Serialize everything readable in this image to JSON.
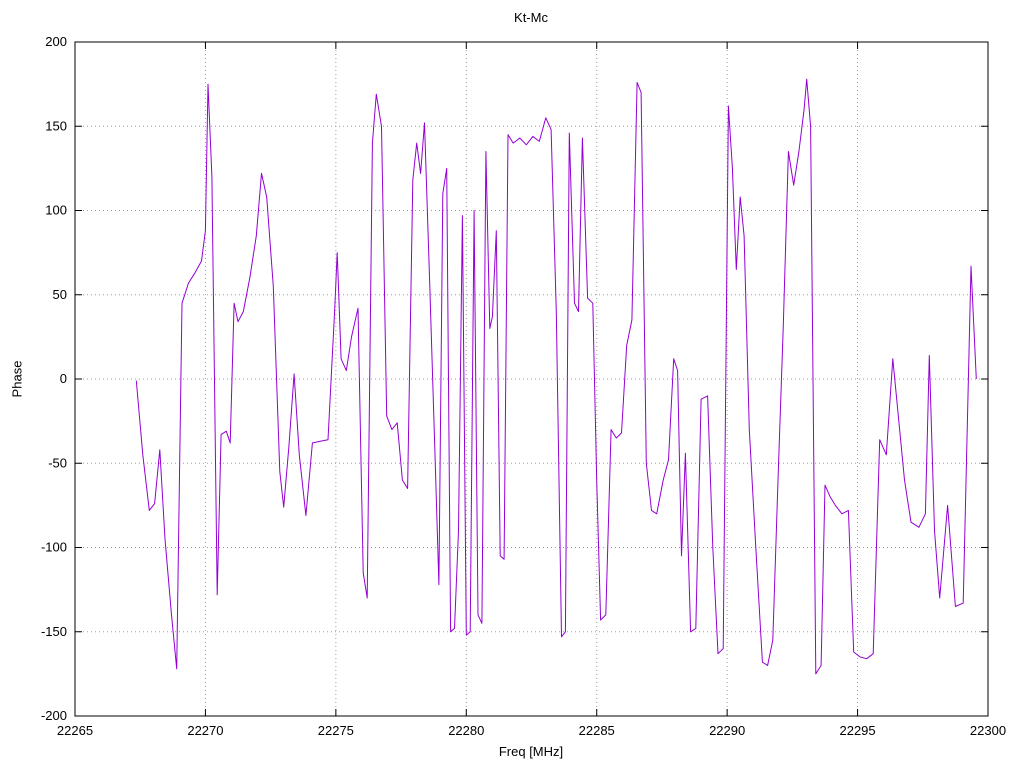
{
  "chart_data": {
    "type": "line",
    "title": "Kt-Mc",
    "xlabel": "Freq [MHz]",
    "ylabel": "Phase",
    "xlim": [
      22265,
      22300
    ],
    "ylim": [
      -200,
      200
    ],
    "xticks": [
      22265,
      22270,
      22275,
      22280,
      22285,
      22290,
      22295,
      22300
    ],
    "yticks": [
      -200,
      -150,
      -100,
      -50,
      0,
      50,
      100,
      150,
      200
    ],
    "grid": true,
    "legend": "none",
    "line_color": "#9400d3",
    "grid_color": "#9e9e9e",
    "points": [
      [
        22267.35,
        -1
      ],
      [
        22267.6,
        -45
      ],
      [
        22267.85,
        -78
      ],
      [
        22268.05,
        -74
      ],
      [
        22268.25,
        -42
      ],
      [
        22268.45,
        -95
      ],
      [
        22268.7,
        -140
      ],
      [
        22268.9,
        -172
      ],
      [
        22269.1,
        45
      ],
      [
        22269.35,
        57
      ],
      [
        22269.6,
        63
      ],
      [
        22269.85,
        70
      ],
      [
        22270.0,
        88
      ],
      [
        22270.1,
        175
      ],
      [
        22270.25,
        120
      ],
      [
        22270.45,
        -128
      ],
      [
        22270.6,
        -33
      ],
      [
        22270.8,
        -31
      ],
      [
        22270.95,
        -38
      ],
      [
        22271.1,
        45
      ],
      [
        22271.25,
        34
      ],
      [
        22271.45,
        40
      ],
      [
        22271.7,
        60
      ],
      [
        22271.95,
        85
      ],
      [
        22272.15,
        122
      ],
      [
        22272.35,
        108
      ],
      [
        22272.6,
        55
      ],
      [
        22272.85,
        -55
      ],
      [
        22273.0,
        -76
      ],
      [
        22273.2,
        -40
      ],
      [
        22273.4,
        3
      ],
      [
        22273.6,
        -45
      ],
      [
        22273.85,
        -81
      ],
      [
        22274.1,
        -38
      ],
      [
        22274.4,
        -37
      ],
      [
        22274.7,
        -36
      ],
      [
        22274.95,
        40
      ],
      [
        22275.05,
        75
      ],
      [
        22275.2,
        12
      ],
      [
        22275.4,
        5
      ],
      [
        22275.6,
        25
      ],
      [
        22275.85,
        42
      ],
      [
        22276.05,
        -115
      ],
      [
        22276.2,
        -130
      ],
      [
        22276.4,
        140
      ],
      [
        22276.55,
        169
      ],
      [
        22276.75,
        150
      ],
      [
        22276.95,
        -22
      ],
      [
        22277.15,
        -30
      ],
      [
        22277.35,
        -26
      ],
      [
        22277.55,
        -60
      ],
      [
        22277.75,
        -65
      ],
      [
        22277.95,
        118
      ],
      [
        22278.1,
        140
      ],
      [
        22278.25,
        122
      ],
      [
        22278.4,
        152
      ],
      [
        22278.6,
        55
      ],
      [
        22278.8,
        -45
      ],
      [
        22278.95,
        -122
      ],
      [
        22279.1,
        110
      ],
      [
        22279.25,
        125
      ],
      [
        22279.4,
        -150
      ],
      [
        22279.55,
        -148
      ],
      [
        22279.7,
        -90
      ],
      [
        22279.85,
        97
      ],
      [
        22280.0,
        -152
      ],
      [
        22280.15,
        -150
      ],
      [
        22280.3,
        100
      ],
      [
        22280.45,
        -140
      ],
      [
        22280.6,
        -145
      ],
      [
        22280.75,
        135
      ],
      [
        22280.9,
        30
      ],
      [
        22281.0,
        37
      ],
      [
        22281.15,
        88
      ],
      [
        22281.3,
        -105
      ],
      [
        22281.45,
        -107
      ],
      [
        22281.6,
        145
      ],
      [
        22281.8,
        140
      ],
      [
        22282.05,
        143
      ],
      [
        22282.3,
        139
      ],
      [
        22282.55,
        144
      ],
      [
        22282.8,
        141
      ],
      [
        22283.05,
        155
      ],
      [
        22283.25,
        148
      ],
      [
        22283.45,
        40
      ],
      [
        22283.65,
        -153
      ],
      [
        22283.8,
        -150
      ],
      [
        22283.95,
        146
      ],
      [
        22284.15,
        45
      ],
      [
        22284.3,
        40
      ],
      [
        22284.45,
        143
      ],
      [
        22284.65,
        48
      ],
      [
        22284.85,
        45
      ],
      [
        22285.0,
        -60
      ],
      [
        22285.15,
        -143
      ],
      [
        22285.35,
        -140
      ],
      [
        22285.55,
        -30
      ],
      [
        22285.75,
        -35
      ],
      [
        22285.95,
        -32
      ],
      [
        22286.15,
        20
      ],
      [
        22286.35,
        35
      ],
      [
        22286.55,
        176
      ],
      [
        22286.7,
        170
      ],
      [
        22286.9,
        -50
      ],
      [
        22287.1,
        -78
      ],
      [
        22287.3,
        -80
      ],
      [
        22287.55,
        -60
      ],
      [
        22287.75,
        -48
      ],
      [
        22287.95,
        12
      ],
      [
        22288.1,
        5
      ],
      [
        22288.25,
        -105
      ],
      [
        22288.4,
        -44
      ],
      [
        22288.6,
        -150
      ],
      [
        22288.8,
        -148
      ],
      [
        22289.0,
        -12
      ],
      [
        22289.25,
        -10
      ],
      [
        22289.45,
        -100
      ],
      [
        22289.65,
        -163
      ],
      [
        22289.85,
        -160
      ],
      [
        22290.05,
        162
      ],
      [
        22290.2,
        125
      ],
      [
        22290.35,
        65
      ],
      [
        22290.5,
        108
      ],
      [
        22290.65,
        85
      ],
      [
        22290.85,
        -30
      ],
      [
        22291.1,
        -100
      ],
      [
        22291.35,
        -168
      ],
      [
        22291.55,
        -170
      ],
      [
        22291.75,
        -155
      ],
      [
        22291.95,
        -60
      ],
      [
        22292.15,
        30
      ],
      [
        22292.35,
        135
      ],
      [
        22292.55,
        115
      ],
      [
        22292.75,
        135
      ],
      [
        22292.95,
        160
      ],
      [
        22293.05,
        178
      ],
      [
        22293.2,
        150
      ],
      [
        22293.4,
        -175
      ],
      [
        22293.6,
        -170
      ],
      [
        22293.75,
        -63
      ],
      [
        22293.95,
        -70
      ],
      [
        22294.15,
        -75
      ],
      [
        22294.4,
        -80
      ],
      [
        22294.65,
        -78
      ],
      [
        22294.85,
        -162
      ],
      [
        22295.1,
        -165
      ],
      [
        22295.35,
        -166
      ],
      [
        22295.6,
        -163
      ],
      [
        22295.85,
        -36
      ],
      [
        22296.1,
        -45
      ],
      [
        22296.35,
        12
      ],
      [
        22296.55,
        -20
      ],
      [
        22296.8,
        -60
      ],
      [
        22297.05,
        -85
      ],
      [
        22297.35,
        -88
      ],
      [
        22297.6,
        -80
      ],
      [
        22297.75,
        14
      ],
      [
        22297.95,
        -90
      ],
      [
        22298.15,
        -130
      ],
      [
        22298.45,
        -75
      ],
      [
        22298.75,
        -135
      ],
      [
        22299.05,
        -133
      ],
      [
        22299.35,
        67
      ],
      [
        22299.55,
        0
      ]
    ]
  }
}
